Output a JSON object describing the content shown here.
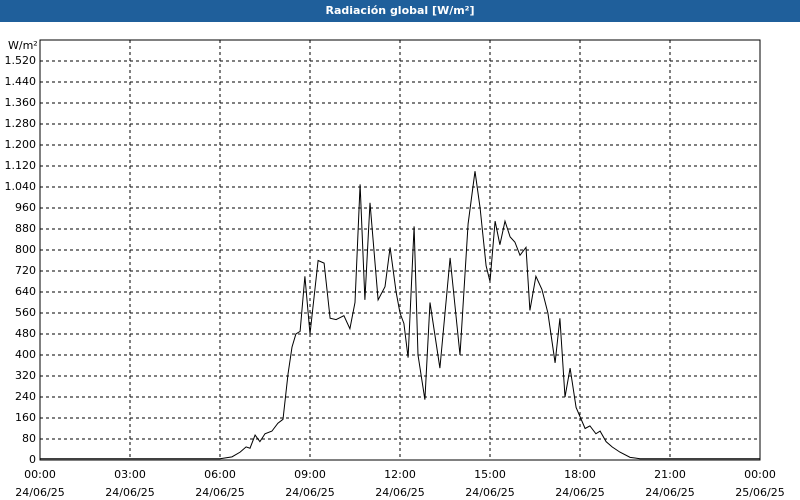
{
  "chart_data": {
    "type": "line",
    "title": "Radiación global [W/m²]",
    "y_label": "W/m²",
    "x": [
      0,
      6.0,
      6.4,
      6.67,
      6.87,
      7.0,
      7.17,
      7.33,
      7.5,
      7.73,
      7.93,
      8.1,
      8.27,
      8.4,
      8.53,
      8.67,
      8.83,
      9.0,
      9.27,
      9.47,
      9.67,
      9.87,
      10.13,
      10.33,
      10.5,
      10.67,
      10.83,
      11.0,
      11.27,
      11.5,
      11.67,
      11.87,
      12.0,
      12.13,
      12.27,
      12.47,
      12.6,
      12.83,
      13.0,
      13.33,
      13.67,
      14.0,
      14.27,
      14.5,
      14.67,
      14.87,
      15.0,
      15.17,
      15.33,
      15.5,
      15.67,
      15.83,
      16.0,
      16.2,
      16.33,
      16.53,
      16.73,
      16.93,
      17.17,
      17.33,
      17.5,
      17.67,
      17.87,
      18.17,
      18.33,
      18.53,
      18.67,
      18.87,
      19.07,
      19.33,
      19.67,
      20.0,
      24.0
    ],
    "series": [
      {
        "color": "#000000",
        "values": [
          5,
          5,
          12,
          30,
          50,
          45,
          95,
          70,
          100,
          110,
          140,
          155,
          330,
          430,
          480,
          490,
          700,
          480,
          760,
          750,
          540,
          535,
          550,
          500,
          600,
          1050,
          610,
          980,
          610,
          660,
          810,
          640,
          560,
          520,
          390,
          890,
          400,
          230,
          600,
          350,
          770,
          400,
          900,
          1100,
          960,
          740,
          680,
          910,
          820,
          910,
          850,
          830,
          780,
          810,
          570,
          700,
          650,
          560,
          370,
          540,
          240,
          350,
          200,
          120,
          130,
          100,
          110,
          70,
          50,
          30,
          10,
          5,
          5
        ]
      }
    ],
    "xlim": [
      0,
      24
    ],
    "xticks": [
      {
        "value": 0,
        "label": "00:00\n24/06/25"
      },
      {
        "value": 3,
        "label": "03:00\n24/06/25"
      },
      {
        "value": 6,
        "label": "06:00\n24/06/25"
      },
      {
        "value": 9,
        "label": "09:00\n24/06/25"
      },
      {
        "value": 12,
        "label": "12:00\n24/06/25"
      },
      {
        "value": 15,
        "label": "15:00\n24/06/25"
      },
      {
        "value": 18,
        "label": "18:00\n24/06/25"
      },
      {
        "value": 21,
        "label": "21:00\n24/06/25"
      },
      {
        "value": 24,
        "label": "00:00\n25/06/25"
      }
    ],
    "ylim": [
      0,
      1600
    ],
    "yticks": [
      0,
      80,
      160,
      240,
      320,
      400,
      480,
      560,
      640,
      720,
      800,
      880,
      960,
      {
        "value": 1040,
        "label": "1.040"
      },
      {
        "value": 1120,
        "label": "1.120"
      },
      {
        "value": 1200,
        "label": "1.200"
      },
      {
        "value": 1280,
        "label": "1.280"
      },
      {
        "value": 1360,
        "label": "1.360"
      },
      {
        "value": 1440,
        "label": "1.440"
      },
      {
        "value": 1520,
        "label": "1.520"
      }
    ],
    "grid": true
  }
}
